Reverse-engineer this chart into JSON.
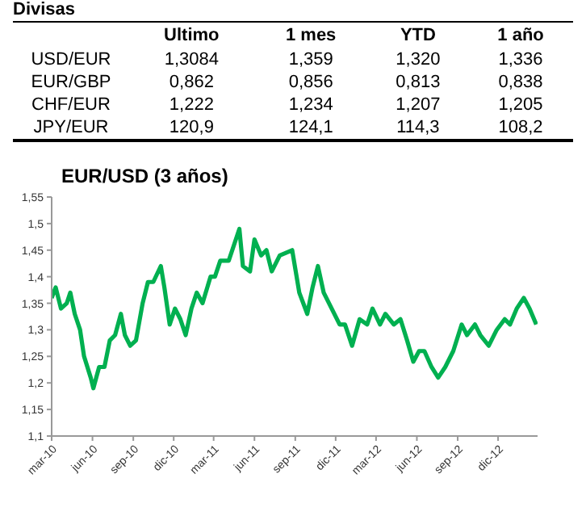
{
  "chart_data": [
    {
      "type": "other",
      "title": "Divisas",
      "categories": [
        "Ultimo",
        "1 mes",
        "YTD",
        "1 año"
      ],
      "y_categories": [
        "USD/EUR",
        "EUR/GBP",
        "CHF/EUR",
        "JPY/EUR"
      ],
      "cell_labels": [
        [
          "1,3084",
          "1,359",
          "1,320",
          "1,336"
        ],
        [
          "0,862",
          "0,856",
          "0,813",
          "0,838"
        ],
        [
          "1,222",
          "1,234",
          "1,207",
          "1,205"
        ],
        [
          "120,9",
          "124,1",
          "114,3",
          "108,2"
        ]
      ]
    },
    {
      "type": "line",
      "title": "EUR/USD (3 años)",
      "x": [
        "2010-03-01",
        "2010-03-10",
        "2010-03-22",
        "2010-04-04",
        "2010-04-12",
        "2010-04-22",
        "2010-05-04",
        "2010-05-13",
        "2010-05-28",
        "2010-06-03",
        "2010-06-16",
        "2010-06-28",
        "2010-07-10",
        "2010-07-22",
        "2010-08-04",
        "2010-08-13",
        "2010-08-25",
        "2010-09-07",
        "2010-09-22",
        "2010-10-04",
        "2010-10-16",
        "2010-11-02",
        "2010-11-10",
        "2010-11-22",
        "2010-12-04",
        "2010-12-16",
        "2010-12-28",
        "2011-01-10",
        "2011-01-22",
        "2011-02-04",
        "2011-02-22",
        "2011-03-04",
        "2011-03-16",
        "2011-04-04",
        "2011-04-16",
        "2011-04-28",
        "2011-05-06",
        "2011-05-22",
        "2011-06-01",
        "2011-06-16",
        "2011-06-28",
        "2011-07-10",
        "2011-07-28",
        "2011-08-25",
        "2011-09-10",
        "2011-09-28",
        "2011-10-10",
        "2011-10-22",
        "2011-11-04",
        "2011-11-22",
        "2011-12-10",
        "2011-12-22",
        "2012-01-07",
        "2012-01-24",
        "2012-02-10",
        "2012-02-22",
        "2012-03-10",
        "2012-03-22",
        "2012-04-10",
        "2012-04-25",
        "2012-05-10",
        "2012-05-24",
        "2012-06-06",
        "2012-06-18",
        "2012-07-04",
        "2012-07-19",
        "2012-08-04",
        "2012-08-22",
        "2012-09-10",
        "2012-09-22",
        "2012-10-10",
        "2012-10-22",
        "2012-11-10",
        "2012-11-28",
        "2012-12-16",
        "2012-12-28",
        "2013-01-12",
        "2013-01-28",
        "2013-02-10",
        "2013-02-25"
      ],
      "series": [
        {
          "color": "#00b050",
          "values": [
            1.36,
            1.38,
            1.34,
            1.35,
            1.37,
            1.33,
            1.3,
            1.25,
            1.21,
            1.19,
            1.23,
            1.23,
            1.28,
            1.29,
            1.33,
            1.29,
            1.27,
            1.28,
            1.35,
            1.39,
            1.39,
            1.42,
            1.38,
            1.31,
            1.34,
            1.32,
            1.29,
            1.34,
            1.37,
            1.35,
            1.4,
            1.4,
            1.43,
            1.43,
            1.46,
            1.49,
            1.42,
            1.41,
            1.47,
            1.44,
            1.45,
            1.41,
            1.44,
            1.45,
            1.37,
            1.33,
            1.38,
            1.42,
            1.37,
            1.34,
            1.31,
            1.31,
            1.27,
            1.32,
            1.31,
            1.34,
            1.31,
            1.33,
            1.31,
            1.32,
            1.28,
            1.24,
            1.26,
            1.26,
            1.23,
            1.21,
            1.23,
            1.26,
            1.31,
            1.29,
            1.31,
            1.29,
            1.27,
            1.3,
            1.32,
            1.31,
            1.34,
            1.36,
            1.34,
            1.31
          ]
        }
      ],
      "xlim": [
        "2010-03-01",
        "2013-02-28"
      ],
      "xticks": [
        {
          "value": "2010-03-01",
          "label": "mar-10"
        },
        {
          "value": "2010-06-01",
          "label": "jun-10"
        },
        {
          "value": "2010-09-01",
          "label": "sep-10"
        },
        {
          "value": "2010-12-01",
          "label": "dic-10"
        },
        {
          "value": "2011-03-01",
          "label": "mar-11"
        },
        {
          "value": "2011-06-01",
          "label": "jun-11"
        },
        {
          "value": "2011-09-01",
          "label": "sep-11"
        },
        {
          "value": "2011-12-01",
          "label": "dic-11"
        },
        {
          "value": "2012-03-01",
          "label": "mar-12"
        },
        {
          "value": "2012-06-01",
          "label": "jun-12"
        },
        {
          "value": "2012-09-01",
          "label": "sep-12"
        },
        {
          "value": "2012-12-01",
          "label": "dic-12"
        }
      ],
      "ylim": [
        1.1,
        1.55
      ],
      "yticks": [
        {
          "value": 1.1,
          "label": "1,1"
        },
        {
          "value": 1.15,
          "label": "1,15"
        },
        {
          "value": 1.2,
          "label": "1,2"
        },
        {
          "value": 1.25,
          "label": "1,25"
        },
        {
          "value": 1.3,
          "label": "1,3"
        },
        {
          "value": 1.35,
          "label": "1,35"
        },
        {
          "value": 1.4,
          "label": "1,4"
        },
        {
          "value": 1.45,
          "label": "1,45"
        },
        {
          "value": 1.5,
          "label": "1,5"
        },
        {
          "value": 1.55,
          "label": "1,55"
        }
      ],
      "marker": "none",
      "line_style": "solid"
    }
  ]
}
